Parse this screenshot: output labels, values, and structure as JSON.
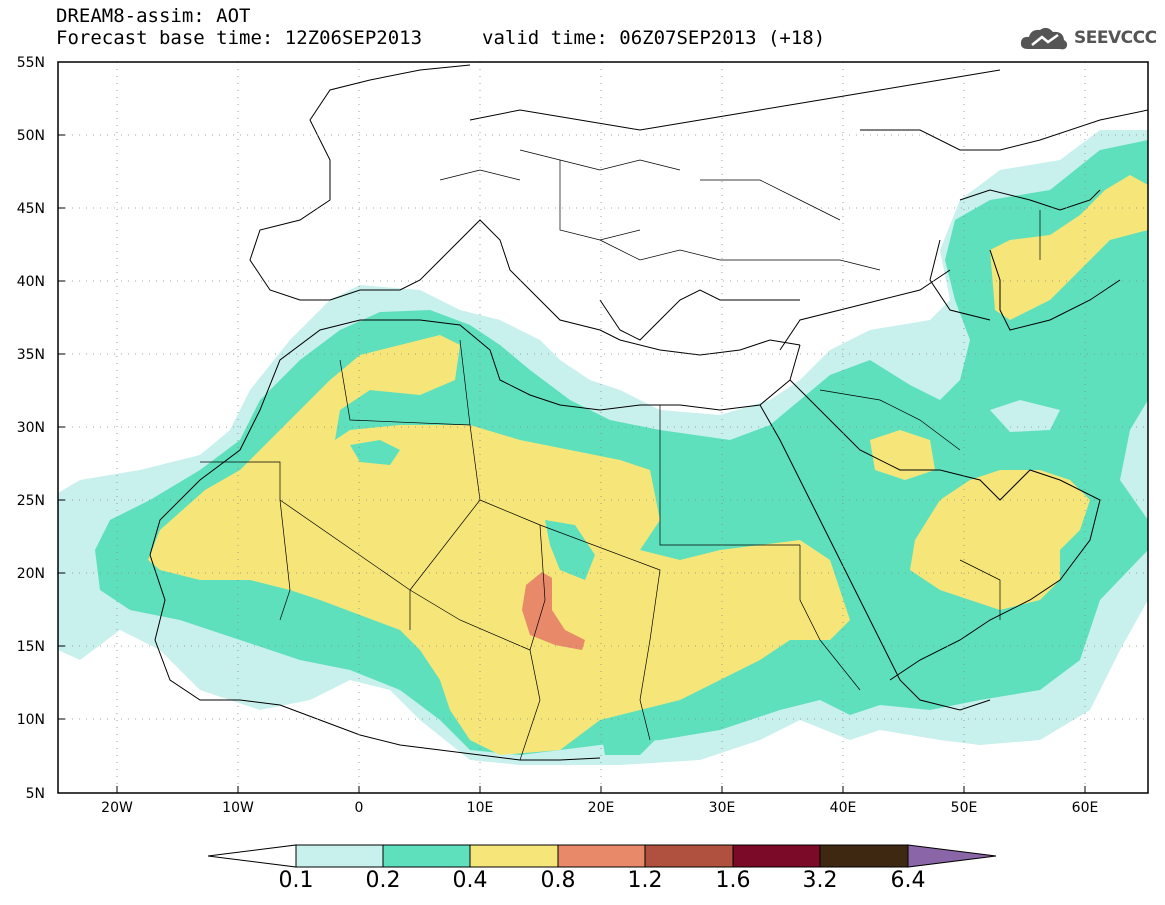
{
  "header": {
    "title": "DREAM8-assim: AOT",
    "base_time": "Forecast base time: 12Z06SEP2013",
    "valid_time": "valid time: 06Z07SEP2013 (+18)"
  },
  "logo": {
    "text": "SEEVCCC",
    "icon": "cloud-icon"
  },
  "map": {
    "lat_labels": [
      "55N",
      "50N",
      "45N",
      "40N",
      "35N",
      "30N",
      "25N",
      "20N",
      "15N",
      "10N",
      "5N"
    ],
    "lon_labels": [
      "20W",
      "10W",
      "0",
      "10E",
      "20E",
      "30E",
      "40E",
      "50E",
      "60E"
    ],
    "lon_range": [
      -25,
      65
    ],
    "lat_range": [
      5,
      55
    ]
  },
  "colorbar": {
    "labels": [
      "0.1",
      "0.2",
      "0.4",
      "0.8",
      "1.2",
      "1.6",
      "3.2",
      "6.4"
    ],
    "colors": [
      "#c8f0ec",
      "#5ee0bc",
      "#f6e67a",
      "#e8896a",
      "#b0503e",
      "#7a0a28",
      "#3e2812",
      "#8a66a8"
    ]
  }
}
